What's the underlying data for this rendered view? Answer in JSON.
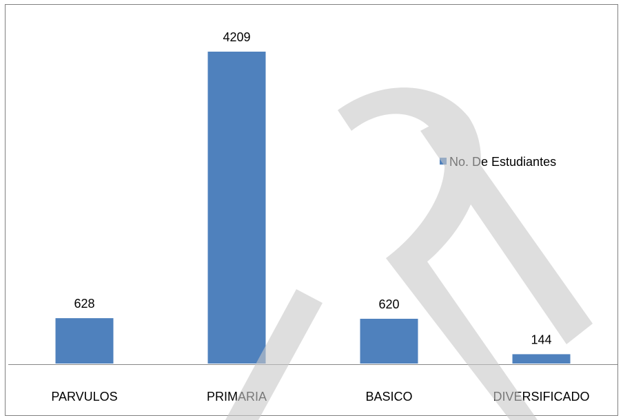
{
  "chart_data": {
    "type": "bar",
    "title": "",
    "xlabel": "",
    "ylabel": "",
    "categories": [
      "PARVULOS",
      "PRIMARIA",
      "BASICO",
      "DIVERSIFICADO"
    ],
    "series": [
      {
        "name": "No. De Estudiantes",
        "values": [
          628,
          4209,
          620,
          144
        ]
      }
    ],
    "ylim": [
      0,
      4209
    ],
    "grid": false,
    "legend_position": "right",
    "data_labels": true,
    "colors": {
      "bar": "#4f81bd",
      "bar_edge": "#ffffff",
      "axis": "#868686",
      "frame": "#7f7f7f"
    }
  }
}
